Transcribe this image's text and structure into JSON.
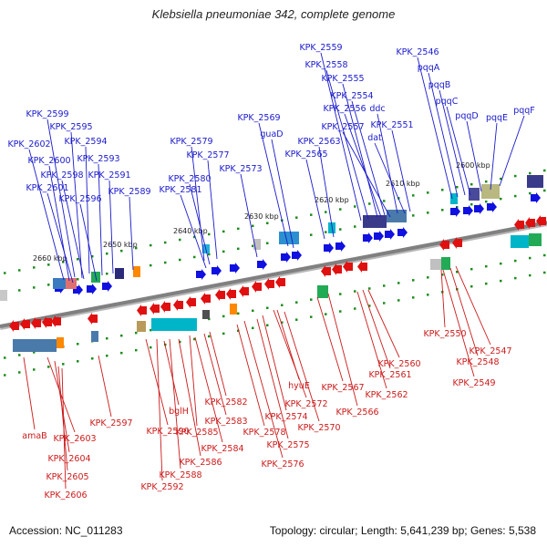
{
  "header": {
    "title": "Klebsiella pneumoniae 342, complete genome"
  },
  "footer": {
    "accession": "Accession: NC_011283",
    "summary": "Topology: circular; Length: 5,641,239 bp; Genes: 5,538"
  },
  "colors": {
    "forward": "#1010e0",
    "reverse": "#e01010",
    "forward_label": "#1a1acc",
    "reverse_label": "#cc1a1a",
    "backbone": "#808080",
    "tick_dot": "#1e8c1e"
  },
  "scale_labels": [
    "2660 kbp",
    "2650 kbp",
    "2640 kbp",
    "2630 kbp",
    "2620 kbp",
    "2610 kbp",
    "2600 kbp"
  ],
  "forward_genes": [
    "KPK_2599",
    "KPK_2595",
    "KPK_2602",
    "KPK_2594",
    "KPK_2600",
    "KPK_2593",
    "KPK_2598",
    "KPK_2591",
    "KPK_2601",
    "KPK_2596",
    "KPK_2589",
    "KPK_2579",
    "KPK_2577",
    "KPK_2580",
    "KPK_2581",
    "KPK_2573",
    "KPK_2569",
    "guaD",
    "KPK_2563",
    "KPK_2565",
    "KPK_2559",
    "KPK_2558",
    "KPK_2555",
    "KPK_2554",
    "KPK_2556",
    "ddc",
    "KPK_2557",
    "dat",
    "KPK_2551",
    "KPK_2546",
    "pqqA",
    "pqqB",
    "pqqC",
    "pqqD",
    "pqqE",
    "pqqF"
  ],
  "reverse_genes": [
    "amaB",
    "KPK_2603",
    "KPK_2604",
    "KPK_2605",
    "KPK_2606",
    "KPK_2597",
    "KPK_2590",
    "bglH",
    "KPK_2588",
    "KPK_2592",
    "KPK_2586",
    "KPK_2585",
    "KPK_2584",
    "KPK_2583",
    "KPK_2582",
    "KPK_2578",
    "KPK_2576",
    "KPK_2575",
    "KPK_2574",
    "hyuE",
    "KPK_2572",
    "KPK_2570",
    "KPK_2567",
    "KPK_2566",
    "KPK_2560",
    "KPK_2561",
    "KPK_2562",
    "KPK_2550",
    "KPK_2547",
    "KPK_2548",
    "KPK_2549"
  ]
}
